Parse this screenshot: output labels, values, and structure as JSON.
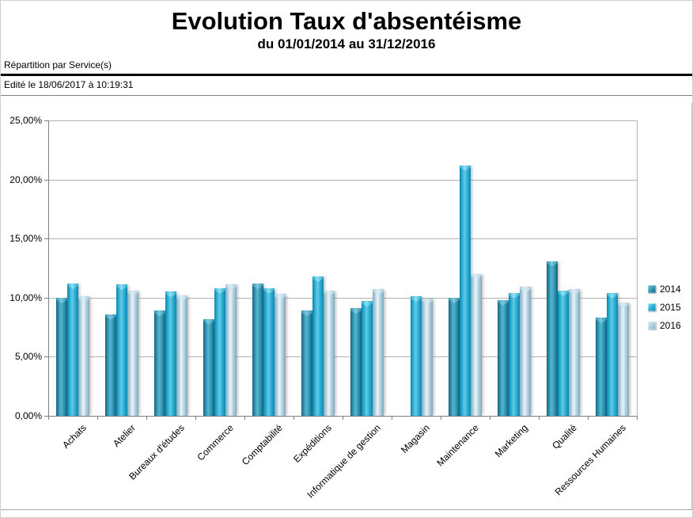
{
  "header": {
    "title": "Evolution Taux d'absentéisme",
    "subtitle": "du 01/01/2014 au 31/12/2016",
    "scope": "Répartition par Service(s)",
    "edited": "Edité le 18/06/2017 à 10:19:31"
  },
  "chart_data": {
    "type": "bar",
    "title": "Evolution Taux d'absentéisme",
    "subtitle": "du 01/01/2014 au 31/12/2016",
    "categories": [
      "Achats",
      "Atelier",
      "Bureaux d'études",
      "Commerce",
      "Comptabilité",
      "Expéditions",
      "Informatique de gestion",
      "Magasin",
      "Maintenance",
      "Marketing",
      "Qualité",
      "Ressources Humaines"
    ],
    "series": [
      {
        "name": "2014",
        "values": [
          10.0,
          8.6,
          8.9,
          8.2,
          11.2,
          8.9,
          9.1,
          0,
          10.0,
          9.8,
          13.1,
          8.3
        ],
        "colors": {
          "edge": "#15607D",
          "mid": "#2E94B0",
          "highlight": "#58B6CE",
          "cap": "#7FC9DD"
        }
      },
      {
        "name": "2015",
        "values": [
          11.2,
          11.1,
          10.5,
          10.8,
          10.8,
          11.8,
          9.7,
          10.1,
          21.2,
          10.4,
          10.6,
          10.4
        ],
        "colors": {
          "edge": "#0E85AE",
          "mid": "#2AACD2",
          "highlight": "#62CBE6",
          "cap": "#8FE0F2"
        }
      },
      {
        "name": "2016",
        "values": [
          10.1,
          10.6,
          10.2,
          11.1,
          10.3,
          10.6,
          10.7,
          9.9,
          12.0,
          10.9,
          10.7,
          9.6
        ],
        "colors": {
          "edge": "#7FA9BE",
          "mid": "#AFCFDF",
          "highlight": "#EBF5F9",
          "cap": "#DCEEF5"
        }
      }
    ],
    "ylim": [
      0,
      25
    ],
    "ytick_step": 5,
    "ytick_labels": [
      "0,00%",
      "5,00%",
      "10,00%",
      "15,00%",
      "20,00%",
      "25,00%"
    ],
    "unit": "%",
    "grid": true,
    "legend_position": "right",
    "legend": [
      "2014",
      "2015",
      "2016"
    ],
    "axis_colors": {
      "gridline": "#b3b3b3",
      "axis": "#808080"
    }
  }
}
